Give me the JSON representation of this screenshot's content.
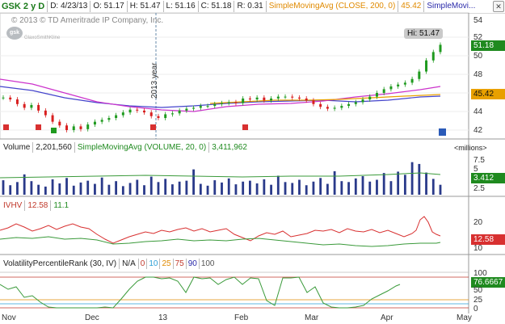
{
  "header": {
    "symbol": "GSK 2 y D",
    "date": "D: 4/23/13",
    "open": "O: 51.17",
    "high": "H: 51.47",
    "low": "L: 51.16",
    "close": "C: 51.18",
    "range": "R: 0.31",
    "sma_label": "SimpleMovingAvg (CLOSE, 200, 0)",
    "sma_value": "45.42",
    "sma2_label": "SimpleMovi...",
    "close_icon": "x-icon"
  },
  "price_panel": {
    "copyright": "© 2013 © TD Ameritrade IP Company, Inc.",
    "logo_text": "gsk",
    "logo_sub": "GlaxoSmithKline",
    "hi_label": "Hi: 51.47",
    "year_label": "2013 year",
    "last_price": "51.18",
    "sma_price": "45.42",
    "axis": [
      "54",
      "52",
      "50",
      "48",
      "46",
      "44",
      "42"
    ],
    "colors": {
      "up": "#1f9a1f",
      "down": "#d81f1f",
      "sma50": "#cc33cc",
      "sma200": "#e8a000",
      "sma_blue": "#4444cc"
    }
  },
  "volume_panel": {
    "title": "Volume",
    "value": "2,201,560",
    "sma_label": "SimpleMovingAvg (VOLUME, 20, 0)",
    "sma_value": "3,411,962",
    "units": "<millions>",
    "badge": "3.412",
    "axis": [
      "7.5",
      "5",
      "2.5"
    ]
  },
  "ivhv_panel": {
    "title": "IVHV",
    "iv_value": "12.58",
    "hv_value": "11.1",
    "badge": "12.58",
    "axis": [
      "20",
      "15",
      "10"
    ]
  },
  "vpr_panel": {
    "title": "VolatilityPercentileRank (30, IV)",
    "na": "N/A",
    "levels": [
      "0",
      "10",
      "25",
      "75",
      "90",
      "100"
    ],
    "level_colors": [
      "#c0392b",
      "#2a9fd6",
      "#e08a00",
      "#c0392b",
      "#2a2aaa",
      "#555555"
    ],
    "badge": "76.6667",
    "axis": [
      "100",
      "75",
      "50",
      "25",
      "0"
    ]
  },
  "months": [
    "Nov",
    "Dec",
    "13",
    "Feb",
    "Mar",
    "Apr",
    "May"
  ],
  "chart_data": {
    "type": "line",
    "series": [
      {
        "name": "GSK",
        "values": [
          45.5,
          45.3,
          44.8,
          44.4,
          44.7,
          44.1,
          43.6,
          42.9,
          42.5,
          42.0,
          42.4,
          42.1,
          42.6,
          42.9,
          43.1,
          43.3,
          43.6,
          43.9,
          44.2,
          44.1,
          43.9,
          43.5,
          43.3,
          43.7,
          43.8,
          44.1,
          44.3,
          44.4,
          44.6,
          44.6,
          44.8,
          44.9,
          45.0,
          44.9,
          45.4,
          45.3,
          45.5,
          45.2,
          45.4,
          45.6,
          45.6,
          45.5,
          45.4,
          45.2,
          44.8,
          44.5,
          44.3,
          44.4,
          44.6,
          44.8,
          45.0,
          45.3,
          45.6,
          46.0,
          46.4,
          46.7,
          46.9,
          47.1,
          47.5,
          48.3,
          49.5,
          50.4,
          51.18
        ]
      },
      {
        "name": "SimpleMovingAvg (CLOSE, 200, 0)",
        "values": [
          44.7,
          44.6,
          44.5,
          44.4,
          44.3,
          44.2,
          44.2,
          44.2,
          44.3,
          44.3,
          44.4,
          44.4,
          44.5,
          44.5,
          44.6,
          44.6,
          44.7,
          44.7,
          44.8,
          44.8,
          44.9,
          44.9,
          45.0,
          45.0,
          45.1,
          45.1,
          45.2,
          45.3,
          45.42
        ]
      },
      {
        "name": "Volume",
        "values": [
          3.2,
          2.1,
          2.8,
          4.5,
          3.0,
          2.2,
          1.8,
          3.4,
          2.5,
          3.7,
          2.0,
          2.7,
          3.1,
          2.4,
          3.8,
          2.2,
          3.0,
          1.9,
          2.6,
          3.3,
          2.1,
          4.0,
          2.8,
          3.5,
          2.3,
          2.9,
          3.1,
          5.6,
          2.4,
          2.0,
          3.2,
          2.7,
          3.6,
          2.3,
          2.9,
          3.1,
          2.5,
          3.4,
          2.2,
          4.2,
          2.8,
          2.6,
          3.3,
          2.1,
          2.9,
          3.7,
          2.4,
          5.2,
          3.0,
          2.8,
          3.6,
          4.1,
          2.9,
          3.3,
          4.8,
          3.0,
          5.1,
          4.4,
          7.2,
          6.8,
          4.9,
          3.5,
          2.2
        ]
      }
    ]
  }
}
